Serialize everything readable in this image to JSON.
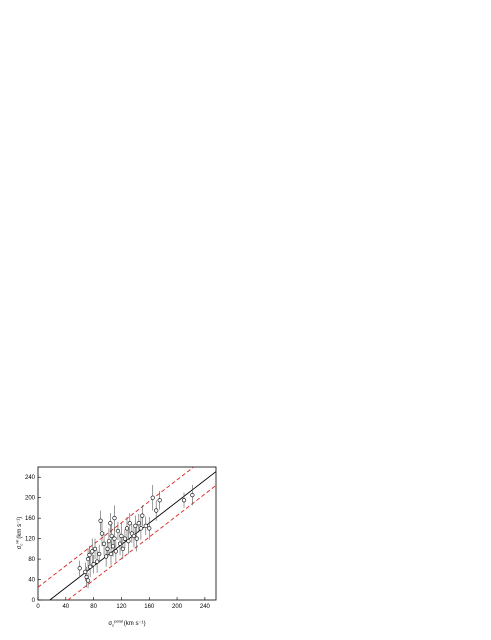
{
  "chart_data": {
    "type": "scatter",
    "x_label": {
      "symbol": "σ",
      "sub": "c",
      "sup": "petal",
      "unit": "(km s⁻¹)"
    },
    "y_label": {
      "symbol": "σ",
      "sub": "c",
      "sup": "HI",
      "unit": "(km s⁻¹)"
    },
    "x": [
      60,
      68,
      70,
      72,
      72,
      74,
      75,
      78,
      80,
      82,
      85,
      88,
      90,
      92,
      95,
      98,
      100,
      102,
      104,
      105,
      106,
      108,
      110,
      110,
      112,
      115,
      118,
      120,
      122,
      125,
      128,
      130,
      132,
      135,
      138,
      140,
      142,
      145,
      148,
      150,
      155,
      160,
      165,
      170,
      175,
      210,
      222
    ],
    "values": [
      62,
      55,
      45,
      38,
      80,
      88,
      65,
      95,
      70,
      100,
      75,
      90,
      155,
      130,
      110,
      85,
      100,
      115,
      150,
      90,
      125,
      105,
      120,
      160,
      95,
      135,
      110,
      125,
      100,
      120,
      140,
      115,
      150,
      130,
      125,
      145,
      120,
      150,
      140,
      165,
      145,
      140,
      200,
      175,
      195,
      195,
      205
    ],
    "yerr": [
      15,
      18,
      20,
      15,
      22,
      18,
      20,
      25,
      18,
      20,
      22,
      18,
      20,
      25,
      22,
      20,
      18,
      25,
      20,
      22,
      25,
      20,
      22,
      25,
      20,
      18,
      22,
      25,
      20,
      18,
      22,
      25,
      20,
      18,
      22,
      20,
      25,
      18,
      22,
      20,
      18,
      22,
      25,
      20,
      18,
      15,
      20
    ],
    "marker_color": "#000000",
    "lines": [
      {
        "style": "solid",
        "color": "#000000",
        "x": [
          17,
          256
        ],
        "y": [
          0,
          251
        ]
      },
      {
        "style": "dashed",
        "color": "#e02020",
        "x": [
          0,
          224
        ],
        "y": [
          25,
          260
        ]
      },
      {
        "style": "dashed",
        "color": "#e02020",
        "x": [
          43,
          256
        ],
        "y": [
          0,
          224
        ]
      }
    ],
    "xlim": [
      0,
      256
    ],
    "ylim": [
      0,
      260
    ],
    "xticks": [
      0,
      40,
      80,
      120,
      160,
      200,
      240
    ],
    "yticks": [
      0,
      40,
      80,
      120,
      160,
      200,
      240
    ]
  }
}
